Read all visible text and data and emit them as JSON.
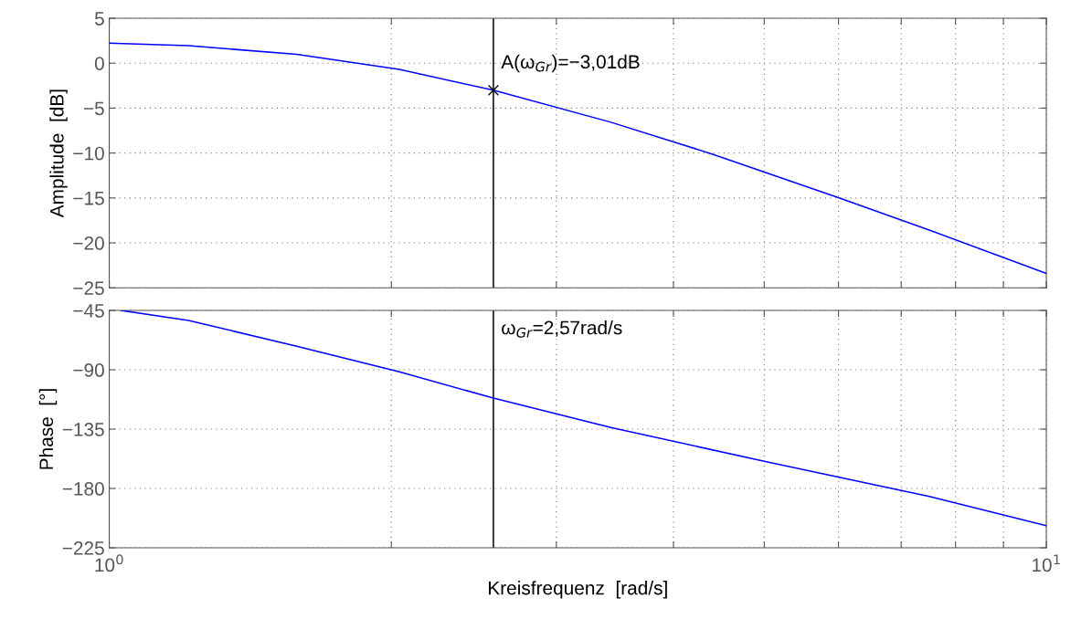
{
  "chart_data": [
    {
      "type": "line",
      "ylabel": "Amplitude  [dB]",
      "log": "x",
      "grid": true,
      "tick_labels": "y",
      "xlim": [
        1,
        10
      ],
      "ylim": [
        -25,
        5
      ],
      "xticks": [
        {
          "value": 1,
          "label": null
        },
        {
          "value": 2,
          "label": null
        },
        {
          "value": 3,
          "label": null
        },
        {
          "value": 4,
          "label": null
        },
        {
          "value": 5,
          "label": null
        },
        {
          "value": 6,
          "label": null
        },
        {
          "value": 7,
          "label": null
        },
        {
          "value": 8,
          "label": null
        },
        {
          "value": 9,
          "label": null
        },
        {
          "value": 10,
          "label": null
        }
      ],
      "yticks": [
        {
          "value": 5,
          "label": "5"
        },
        {
          "value": 0,
          "label": "0"
        },
        {
          "value": -5,
          "label": "−5"
        },
        {
          "value": -10,
          "label": "−10"
        },
        {
          "value": -15,
          "label": "−15"
        },
        {
          "value": -20,
          "label": "−20"
        },
        {
          "value": -25,
          "label": "−25"
        }
      ],
      "series": [
        {
          "color": "#0000ff",
          "x": [
            1,
            1.215,
            1.585,
            2.04,
            2.57,
            3.43,
            4.42,
            6.0,
            7.5,
            10
          ],
          "values": [
            2.23,
            1.95,
            0.98,
            -0.68,
            -3.01,
            -6.57,
            -10.18,
            -14.96,
            -18.57,
            -23.4
          ]
        },
        {
          "type": "scatter",
          "marker": "cross",
          "color": "#000000",
          "x": [
            2.57
          ],
          "values": [
            -3.01
          ]
        }
      ],
      "ref_lines": [
        {
          "axis": "x",
          "value": 2.57,
          "color": "#000000"
        }
      ],
      "annotations": [
        {
          "text": "A(ω$_{Gr}$)=−3,01dB",
          "x": 2.57,
          "y": -3.01
        }
      ]
    },
    {
      "type": "line",
      "ylabel": "Phase  [°]",
      "xlabel": "Kreisfrequenz  [rad/s]",
      "log": "x",
      "grid": true,
      "xlim": [
        1,
        10
      ],
      "ylim": [
        -225,
        -45
      ],
      "xticks": [
        {
          "value": 1,
          "label": "10$^{0}$"
        },
        {
          "value": 2,
          "label": null
        },
        {
          "value": 3,
          "label": null
        },
        {
          "value": 4,
          "label": null
        },
        {
          "value": 5,
          "label": null
        },
        {
          "value": 6,
          "label": null
        },
        {
          "value": 7,
          "label": null
        },
        {
          "value": 8,
          "label": null
        },
        {
          "value": 9,
          "label": null
        },
        {
          "value": 10,
          "label": "10$^{1}$"
        }
      ],
      "yticks": [
        {
          "value": -45,
          "label": "−45"
        },
        {
          "value": -90,
          "label": "−90"
        },
        {
          "value": -135,
          "label": "−135"
        },
        {
          "value": -180,
          "label": "−180"
        },
        {
          "value": -225,
          "label": "−225"
        }
      ],
      "series": [
        {
          "color": "#0000ff",
          "x": [
            1.03,
            1.215,
            1.585,
            2.04,
            2.57,
            3.43,
            5.0,
            7.5,
            10
          ],
          "values": [
            -45,
            -52.6,
            -72.1,
            -91.5,
            -111.5,
            -133.8,
            -159.4,
            -186,
            -208.3
          ]
        }
      ],
      "ref_lines": [
        {
          "axis": "x",
          "value": 2.57,
          "color": "#000000"
        }
      ],
      "annotations": [
        {
          "text": "ω$_{Gr}$=2,57rad/s",
          "x": 2.57
        }
      ]
    }
  ]
}
